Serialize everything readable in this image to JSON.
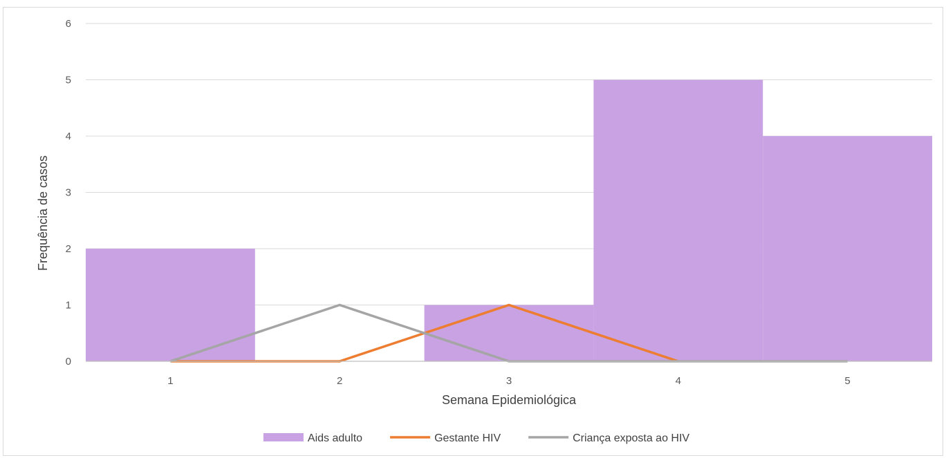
{
  "chart_data": {
    "type": "bar",
    "categories": [
      "1",
      "2",
      "3",
      "4",
      "5"
    ],
    "series": [
      {
        "name": "Aids adulto",
        "kind": "bar",
        "color": "#c8a2e3",
        "values": [
          2,
          0,
          1,
          5,
          4
        ]
      },
      {
        "name": "Gestante HIV",
        "kind": "line",
        "color": "#ed7d31",
        "values": [
          0,
          0,
          1,
          0,
          null
        ]
      },
      {
        "name": "Criança exposta ao HIV",
        "kind": "line",
        "color": "#a5a5a5",
        "values": [
          0,
          1,
          0,
          0,
          0
        ]
      }
    ],
    "xlabel": "Semana Epidemiológica",
    "ylabel": "Frequência de casos",
    "ylim": [
      0,
      6
    ],
    "yticks": [
      "0",
      "1",
      "2",
      "3",
      "4",
      "5",
      "6"
    ],
    "grid": true,
    "legend_position": "bottom",
    "gridline_color": "#d9d9d9",
    "axis_line_color": "#bfbfbf"
  }
}
